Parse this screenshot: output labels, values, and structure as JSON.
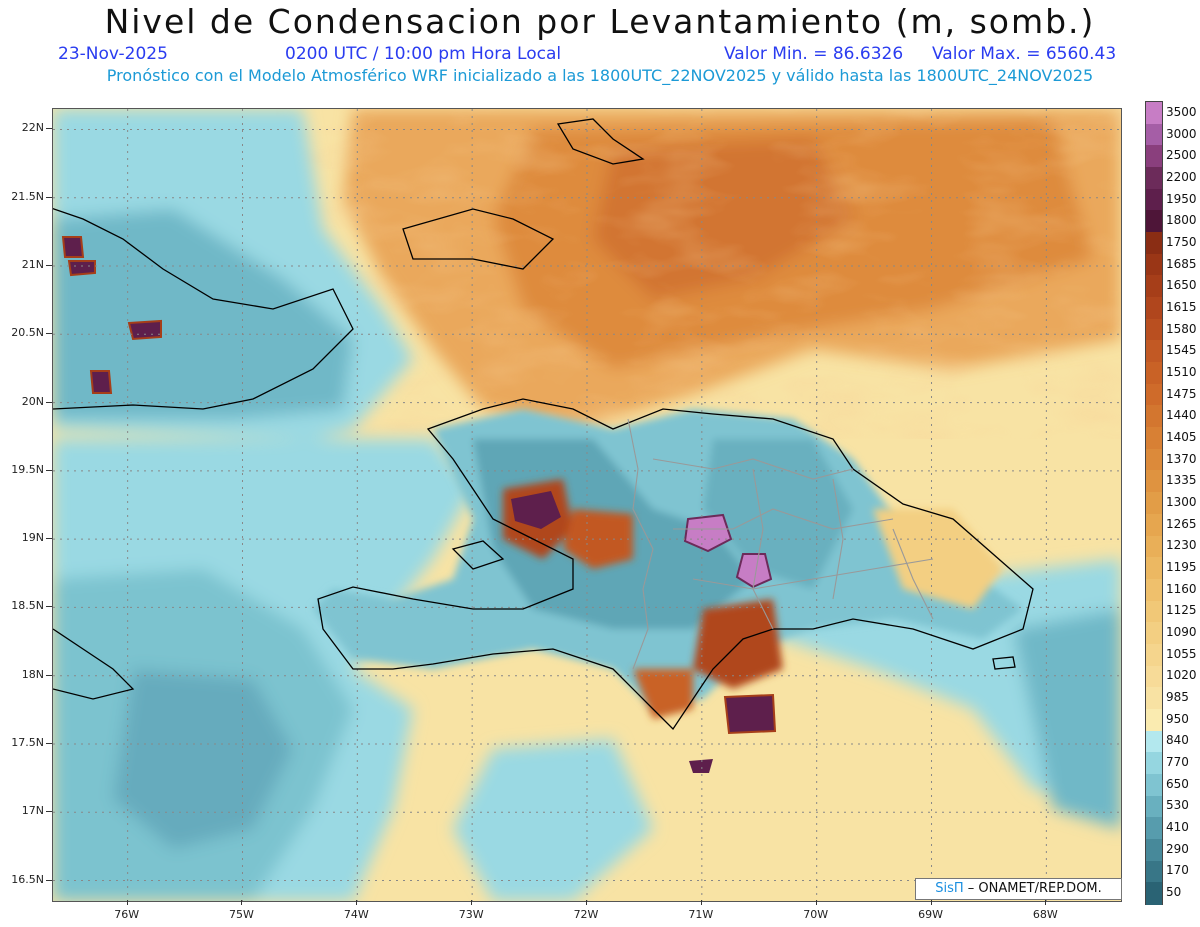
{
  "header": {
    "title": "Nivel de Condensacion por Levantamiento (m, somb.)",
    "date": "23-Nov-2025",
    "time": "0200 UTC / 10:00 pm Hora Local",
    "min_label": "Valor Min. = 86.6326",
    "max_label": "Valor Max. = 6560.43",
    "model_line": "Pronóstico con el Modelo Atmosférico WRF inicializado a las 1800UTC_22NOV2025 y válido hasta las  1800UTC_24NOV2025"
  },
  "credit": {
    "brand": "SisΠ",
    "text": " – ONAMET/REP.DOM."
  },
  "map": {
    "lon_range": [
      -76.65,
      -67.35
    ],
    "lat_range": [
      16.35,
      22.15
    ],
    "y_ticks": [
      "22N",
      "21.5N",
      "21N",
      "20.5N",
      "20N",
      "19.5N",
      "19N",
      "18.5N",
      "18N",
      "17.5N",
      "17N",
      "16.5N"
    ],
    "y_tick_values": [
      22,
      21.5,
      21,
      20.5,
      20,
      19.5,
      19,
      18.5,
      18,
      17.5,
      17,
      16.5
    ],
    "x_ticks": [
      "76W",
      "75W",
      "74W",
      "73W",
      "72W",
      "71W",
      "70W",
      "69W",
      "68W"
    ],
    "x_tick_values": [
      -76,
      -75,
      -74,
      -73,
      -72,
      -71,
      -70,
      -69,
      -68
    ]
  },
  "colorbar": {
    "levels": [
      "3500",
      "3000",
      "2500",
      "2200",
      "1950",
      "1800",
      "1750",
      "1685",
      "1650",
      "1615",
      "1580",
      "1545",
      "1510",
      "1475",
      "1440",
      "1405",
      "1370",
      "1335",
      "1300",
      "1265",
      "1230",
      "1195",
      "1160",
      "1125",
      "1090",
      "1055",
      "1020",
      "985",
      "950",
      "840",
      "770",
      "650",
      "530",
      "410",
      "290",
      "170",
      "50"
    ],
    "colors": [
      "#c77dc5",
      "#a55ea6",
      "#8a3f7d",
      "#6c2b5a",
      "#5e1f4c",
      "#4e1538",
      "#8a2d14",
      "#9a3616",
      "#a63e19",
      "#b0461d",
      "#b94f20",
      "#c25924",
      "#c96226",
      "#cf6b2a",
      "#d3762f",
      "#d88034",
      "#dc8a3a",
      "#df9340",
      "#e29d47",
      "#e6a64f",
      "#e9af58",
      "#ecb862",
      "#efc06c",
      "#f1c877",
      "#f3cf82",
      "#f5d58d",
      "#f7db98",
      "#f8e2a3",
      "#faebb0",
      "#b3e8ee",
      "#95d6e0",
      "#7fc4d1",
      "#69b0bf",
      "#579cad",
      "#47899a",
      "#387687",
      "#2a6374"
    ],
    "label_lines": [
      "3500",
      "3000",
      "2500",
      "2200",
      "1950",
      "1800",
      "1750",
      "1685",
      "1650",
      "1615",
      "1580",
      "1545",
      "1510",
      "1475",
      "1440",
      "1405",
      "1370",
      "1335",
      "1300",
      "1265",
      "1230",
      "1195",
      "1160",
      "1125",
      "1090",
      "1055",
      "1020",
      "985",
      "950",
      "840",
      "770",
      "650",
      "530",
      "410",
      "290",
      "170",
      "50"
    ]
  }
}
